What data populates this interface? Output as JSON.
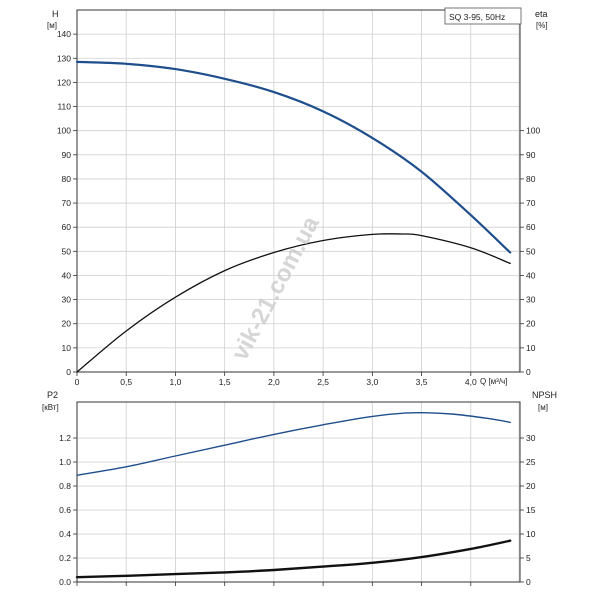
{
  "chart_data": [
    {
      "type": "line",
      "title": "SQ 3-95, 50Hz",
      "xlabel": "Q [м³/ч]",
      "x_unit_label": "Q [м³/ч]",
      "xlim": [
        0,
        4.5
      ],
      "x_ticks": [
        0,
        0.5,
        1.0,
        1.5,
        2.0,
        2.5,
        3.0,
        3.5,
        4.0
      ],
      "x_tick_labels": [
        "0",
        "0,5",
        "1,0",
        "1,5",
        "2,0",
        "2,5",
        "3,0",
        "3,5",
        "4,0"
      ],
      "ylabel_left": "H",
      "ylabel_left_unit": "[м]",
      "ylim_left": [
        0,
        150
      ],
      "y_ticks_left": [
        0,
        10,
        20,
        30,
        40,
        50,
        60,
        70,
        80,
        90,
        100,
        110,
        120,
        130,
        140
      ],
      "ylabel_right": "eta",
      "ylabel_right_unit": "[%]",
      "ylim_right": [
        0,
        150
      ],
      "y_ticks_right": [
        0,
        10,
        20,
        30,
        40,
        50,
        60,
        70,
        80,
        90,
        100
      ],
      "grid": true,
      "series": [
        {
          "axis": "left",
          "color": "#1f4e8c",
          "x": [
            0,
            0.5,
            1.0,
            1.5,
            2.0,
            2.5,
            3.0,
            3.5,
            4.0,
            4.4
          ],
          "values": [
            128.5,
            127.7,
            125.5,
            121.5,
            116,
            108,
            97,
            83,
            65,
            49.5
          ]
        },
        {
          "axis": "right",
          "color": "#111111",
          "x": [
            0,
            0.5,
            1.0,
            1.5,
            2.0,
            2.5,
            3.0,
            3.3,
            3.5,
            4.0,
            4.4
          ],
          "values": [
            0,
            17,
            31,
            42,
            49.5,
            54.5,
            57,
            57.2,
            56.5,
            51.5,
            45
          ]
        }
      ]
    },
    {
      "type": "line",
      "xlim": [
        0,
        4.5
      ],
      "x_ticks": [
        0,
        0.5,
        1.0,
        1.5,
        2.0,
        2.5,
        3.0,
        3.5,
        4.0
      ],
      "ylabel_left": "P2",
      "ylabel_left_unit": "[кВт]",
      "ylim_left": [
        0,
        1.5
      ],
      "y_ticks_left": [
        0,
        0.2,
        0.4,
        0.6,
        0.8,
        1.0,
        1.2
      ],
      "y_tick_labels_left": [
        "0.0",
        "0.2",
        "0.4",
        "0.6",
        "0.8",
        "1.0",
        "1.2"
      ],
      "ylabel_right": "NPSH",
      "ylabel_right_unit": "[м]",
      "ylim_right": [
        0,
        37.5
      ],
      "y_ticks_right": [
        0,
        5,
        10,
        15,
        20,
        25,
        30
      ],
      "grid": true,
      "series": [
        {
          "axis": "left",
          "color": "#1f4e8c",
          "x": [
            0,
            0.5,
            1.0,
            1.5,
            2.0,
            2.5,
            3.0,
            3.4,
            3.8,
            4.2,
            4.4
          ],
          "values": [
            0.89,
            0.96,
            1.05,
            1.14,
            1.23,
            1.31,
            1.38,
            1.41,
            1.4,
            1.36,
            1.33
          ]
        },
        {
          "axis": "right",
          "color": "#111111",
          "x": [
            0,
            0.5,
            1.0,
            1.5,
            2.0,
            2.5,
            3.0,
            3.5,
            4.0,
            4.4
          ],
          "values": [
            1.0,
            1.3,
            1.65,
            2.0,
            2.5,
            3.2,
            4.0,
            5.2,
            6.9,
            8.6
          ]
        }
      ]
    }
  ],
  "watermark": "vik-21.com.ua"
}
